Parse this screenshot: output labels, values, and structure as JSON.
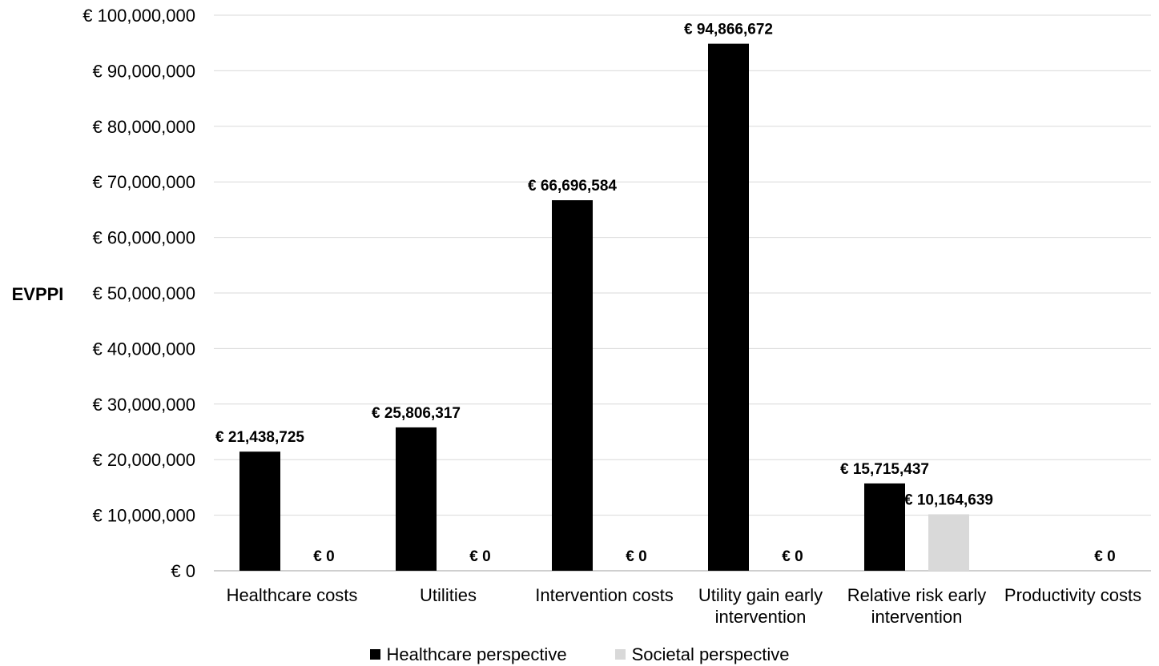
{
  "chart_data": {
    "type": "bar",
    "ylabel": "EVPPI",
    "ylim": [
      0,
      100000000
    ],
    "yticks": [
      0,
      10000000,
      20000000,
      30000000,
      40000000,
      50000000,
      60000000,
      70000000,
      80000000,
      90000000,
      100000000
    ],
    "ytick_labels": [
      "€ 0",
      "€ 10,000,000",
      "€ 20,000,000",
      "€ 30,000,000",
      "€ 40,000,000",
      "€ 50,000,000",
      "€ 60,000,000",
      "€ 70,000,000",
      "€ 80,000,000",
      "€ 90,000,000",
      "€ 100,000,000"
    ],
    "categories": [
      [
        "Healthcare costs"
      ],
      [
        "Utilities"
      ],
      [
        "Intervention costs"
      ],
      [
        "Utility gain early",
        "intervention"
      ],
      [
        "Relative risk early",
        "intervention"
      ],
      [
        "Productivity costs"
      ]
    ],
    "series": [
      {
        "name": "Healthcare perspective",
        "color": "#000000",
        "values": [
          21438725,
          25806317,
          66696584,
          94866672,
          15715437,
          null
        ],
        "labels": [
          "€ 21,438,725",
          "€ 25,806,317",
          "€ 66,696,584",
          "€ 94,866,672",
          "€ 15,715,437",
          null
        ]
      },
      {
        "name": "Societal perspective",
        "color": "#d9d9d9",
        "values": [
          0,
          0,
          0,
          0,
          10164639,
          0
        ],
        "labels": [
          "€ 0",
          "€ 0",
          "€ 0",
          "€ 0",
          "€ 10,164,639",
          "€ 0"
        ]
      }
    ],
    "grid": true,
    "legend_position": "bottom-center"
  }
}
